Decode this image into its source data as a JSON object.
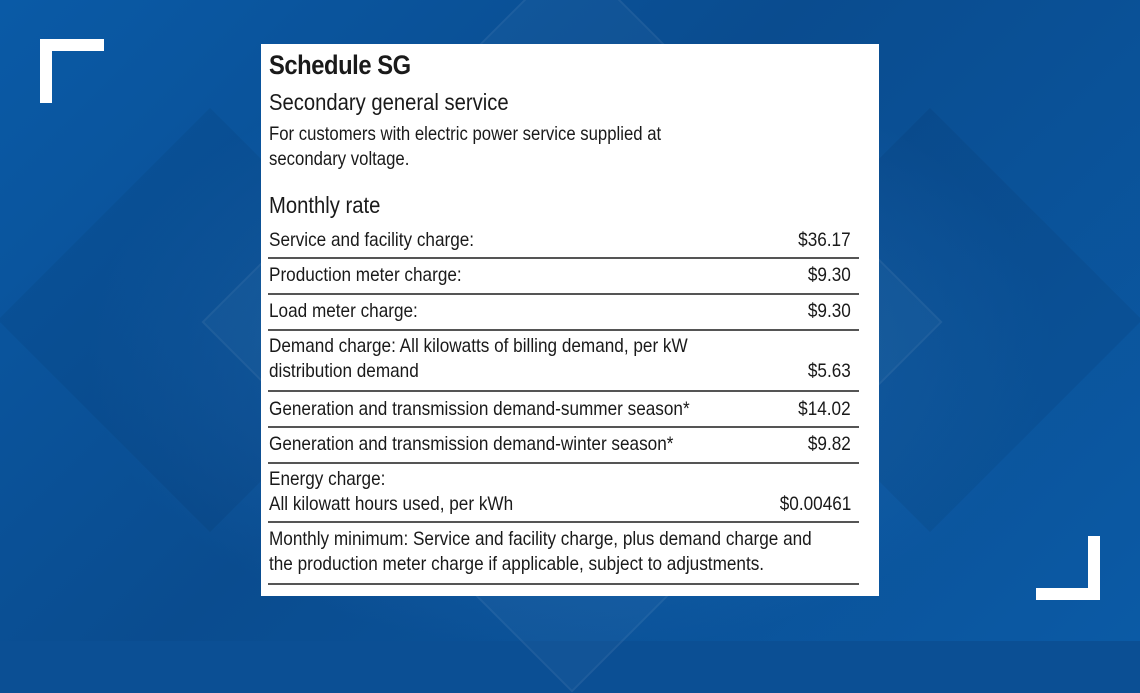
{
  "schedule": {
    "title": "Schedule SG",
    "subtitle": "Secondary general service",
    "description_line1": "For customers with electric power service supplied at",
    "description_line2": "secondary voltage.",
    "section_heading": "Monthly rate"
  },
  "rates": [
    {
      "label": "Service and facility charge:",
      "value": "$36.17"
    },
    {
      "label": "Production meter charge:",
      "value": "$9.30"
    },
    {
      "label": "Load meter charge:",
      "value": "$9.30"
    },
    {
      "label_line1": "Demand charge: All kilowatts of billing demand, per kW",
      "label_line2": "distribution demand",
      "value": "$5.63"
    },
    {
      "label": "Generation and transmission demand-summer season*",
      "value": "$14.02"
    },
    {
      "label": "Generation and transmission demand-winter season*",
      "value": "$9.82"
    },
    {
      "label_line1": "Energy charge:",
      "label_line2": "All kilowatt hours used, per kWh",
      "value": "$0.00461"
    }
  ],
  "minimum": {
    "line1": "Monthly minimum: Service and facility charge, plus demand charge and",
    "line2": "the production meter charge if applicable, subject to adjustments."
  },
  "colors": {
    "background": "#0b4f94",
    "card": "#ffffff",
    "text": "#1a1a1a",
    "rule": "#555555"
  }
}
